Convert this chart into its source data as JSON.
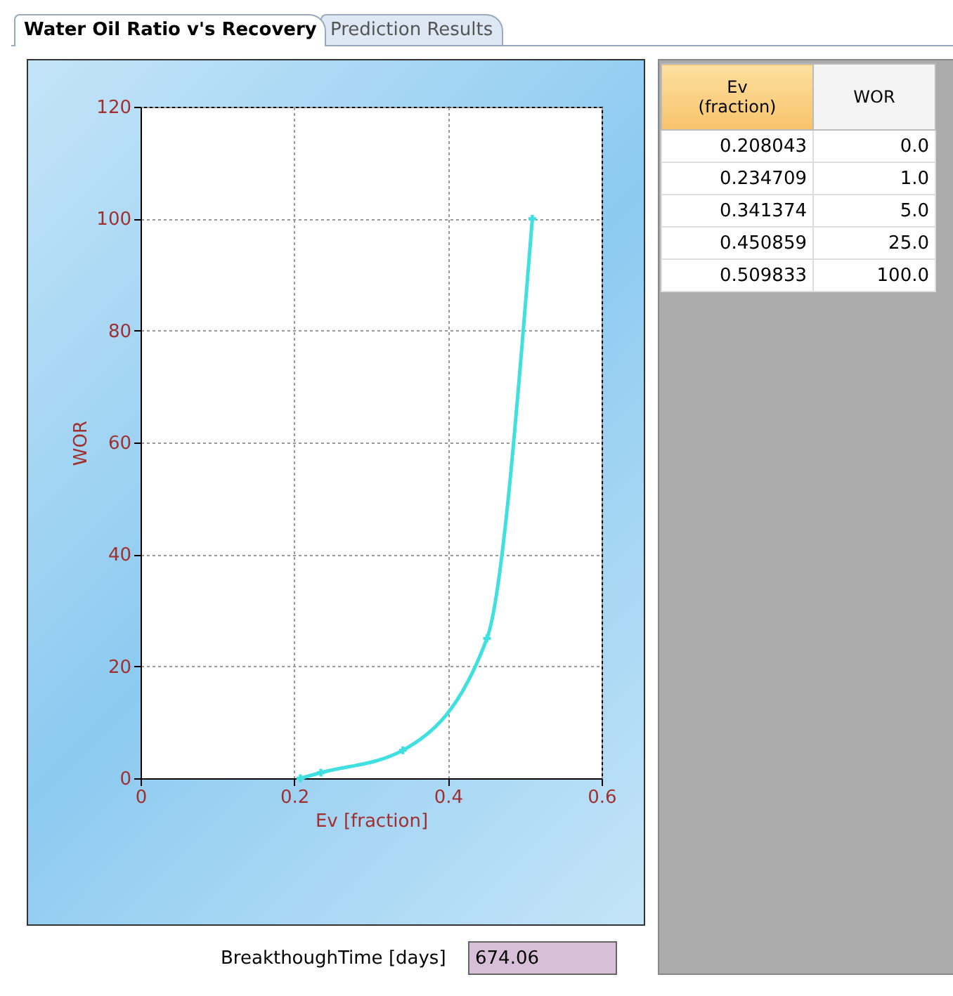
{
  "chart_data": {
    "type": "line",
    "title": "Water Oil Ratio v's Recovery",
    "xlabel": "Ev [fraction]",
    "ylabel": "WOR",
    "x": [
      0.208043,
      0.234709,
      0.341374,
      0.450859,
      0.509833
    ],
    "series": [
      {
        "color": "#40e0e0",
        "values": [
          0,
          1,
          5,
          25,
          100
        ]
      }
    ],
    "value_labels": [
      "0.0",
      "1.0",
      "5.0",
      "25.0",
      "100.0"
    ],
    "xlim": [
      0,
      0.6
    ],
    "xticks": [
      0,
      0.2,
      0.4,
      0.6
    ],
    "ylim": [
      0,
      120
    ],
    "yticks": [
      0,
      20,
      40,
      60,
      80,
      100,
      120
    ],
    "grid": true,
    "marker": "cross",
    "line_style": "solid",
    "annotations": [
      "Prediction Results",
      "Ev (fraction)",
      "WOR",
      "BreakthoughTime [days]",
      "674.06",
      "0.208043",
      "0.234709",
      "0.341374",
      "0.450859",
      "0.509833"
    ]
  }
}
